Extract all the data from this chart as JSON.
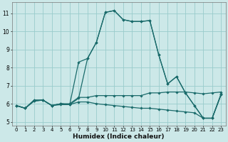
{
  "xlabel": "Humidex (Indice chaleur)",
  "bg_color": "#cce8e8",
  "grid_color": "#99cccc",
  "line_color": "#1a6b6b",
  "xlim": [
    -0.5,
    23.5
  ],
  "ylim": [
    4.8,
    11.6
  ],
  "yticks": [
    5,
    6,
    7,
    8,
    9,
    10,
    11
  ],
  "xticks": [
    0,
    1,
    2,
    3,
    4,
    5,
    6,
    7,
    8,
    9,
    10,
    11,
    12,
    13,
    14,
    15,
    16,
    17,
    18,
    19,
    20,
    21,
    22,
    23
  ],
  "series": [
    {
      "x": [
        0,
        1,
        2,
        3,
        4,
        5,
        6,
        7,
        8,
        9,
        10,
        11,
        12,
        13,
        14,
        15,
        16,
        17,
        18,
        19,
        20,
        21,
        22,
        23
      ],
      "y": [
        5.9,
        5.75,
        6.15,
        6.2,
        5.9,
        6.0,
        5.95,
        6.3,
        8.5,
        9.4,
        11.05,
        11.15,
        10.65,
        10.55,
        10.55,
        10.6,
        8.7,
        7.1,
        7.5,
        6.6,
        5.9,
        5.2,
        5.2,
        6.5
      ]
    },
    {
      "x": [
        0,
        1,
        2,
        3,
        4,
        5,
        6,
        7,
        8,
        9,
        10,
        11,
        12,
        13,
        14,
        15,
        16,
        17,
        18,
        19,
        20,
        21,
        22,
        23
      ],
      "y": [
        5.9,
        5.75,
        6.15,
        6.2,
        5.9,
        6.0,
        5.95,
        8.3,
        8.5,
        9.4,
        11.05,
        11.15,
        10.65,
        10.55,
        10.55,
        10.6,
        8.7,
        7.1,
        7.5,
        6.6,
        5.9,
        5.2,
        5.2,
        6.5
      ]
    },
    {
      "x": [
        0,
        1,
        2,
        3,
        4,
        5,
        6,
        7,
        8,
        9,
        10,
        11,
        12,
        13,
        14,
        15,
        16,
        17,
        18,
        19,
        20,
        21,
        22,
        23
      ],
      "y": [
        5.9,
        5.75,
        6.2,
        6.2,
        5.9,
        6.0,
        6.0,
        6.35,
        6.35,
        6.45,
        6.45,
        6.45,
        6.45,
        6.45,
        6.45,
        6.6,
        6.6,
        6.65,
        6.65,
        6.65,
        6.6,
        6.55,
        6.6,
        6.65
      ]
    },
    {
      "x": [
        0,
        1,
        2,
        3,
        4,
        5,
        6,
        7,
        8,
        9,
        10,
        11,
        12,
        13,
        14,
        15,
        16,
        17,
        18,
        19,
        20,
        21,
        22,
        23
      ],
      "y": [
        5.9,
        5.75,
        6.2,
        6.2,
        5.9,
        5.95,
        5.95,
        6.1,
        6.1,
        6.0,
        5.95,
        5.9,
        5.85,
        5.8,
        5.75,
        5.75,
        5.7,
        5.65,
        5.6,
        5.55,
        5.5,
        5.2,
        5.2,
        6.55
      ]
    }
  ]
}
